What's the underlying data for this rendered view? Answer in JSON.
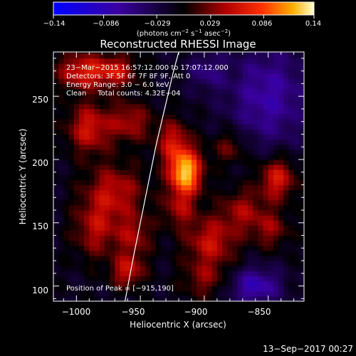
{
  "chart_data": {
    "type": "heatmap",
    "title": "Reconstructed RHESSI Image",
    "xlabel": "Heliocentric X (arcsec)",
    "ylabel": "Heliocentric Y (arcsec)",
    "xlim": [
      -1018,
      -822
    ],
    "ylim": [
      88,
      285
    ],
    "x_ticks": [
      -1000,
      -950,
      -900,
      -850
    ],
    "x_tick_labels": [
      "−1000",
      "−950",
      "−900",
      "−850"
    ],
    "y_ticks": [
      100,
      150,
      200,
      250
    ],
    "y_tick_labels": [
      "100",
      "150",
      "200",
      "250"
    ],
    "colorbar": {
      "range": [
        -0.14,
        0.14
      ],
      "ticks": [
        -0.14,
        -0.086,
        -0.029,
        0.029,
        0.086,
        0.14
      ],
      "tick_labels": [
        "−0.14",
        "−0.086",
        "−0.029",
        "0.029",
        "0.086",
        "0.14"
      ],
      "units_label": "(photons cm",
      "units_exp1": "−2",
      "units_mid": " s",
      "units_exp2": "−1",
      "units_end": " asec",
      "units_exp3": "−2",
      "units_close": ")"
    },
    "info_lines": [
      "23−Mar−2015 16:57:12.000 to 17:07:12.000",
      "Detectors: 3F 5F 6F 7F 8F 9F, Att 0",
      "Energy Range: 3.0 − 6.0 keV",
      "Clean     Total counts: 4.32E+04"
    ],
    "peak_label": "Position of Peak = [−915,190]",
    "peak": {
      "x": -915,
      "y": 190
    },
    "limb_points": [
      [
        -962,
        88
      ],
      [
        -956,
        120
      ],
      [
        -950,
        150
      ],
      [
        -944,
        180
      ],
      [
        -938,
        210
      ],
      [
        -931,
        240
      ],
      [
        -924,
        270
      ],
      [
        -920,
        285
      ]
    ],
    "sources": [
      {
        "x": -915,
        "y": 190,
        "amp": 0.14,
        "sx": 9,
        "sy": 13
      },
      {
        "x": -925,
        "y": 215,
        "amp": 0.06,
        "sx": 9,
        "sy": 12
      },
      {
        "x": -995,
        "y": 270,
        "amp": 0.075,
        "sx": 14,
        "sy": 10
      },
      {
        "x": -968,
        "y": 270,
        "amp": 0.06,
        "sx": 11,
        "sy": 9
      },
      {
        "x": -990,
        "y": 225,
        "amp": 0.07,
        "sx": 12,
        "sy": 14
      },
      {
        "x": -958,
        "y": 230,
        "amp": 0.055,
        "sx": 11,
        "sy": 11
      },
      {
        "x": -970,
        "y": 175,
        "amp": 0.06,
        "sx": 16,
        "sy": 15
      },
      {
        "x": -985,
        "y": 145,
        "amp": 0.055,
        "sx": 12,
        "sy": 16
      },
      {
        "x": -955,
        "y": 140,
        "amp": 0.05,
        "sx": 10,
        "sy": 12
      },
      {
        "x": -960,
        "y": 112,
        "amp": 0.065,
        "sx": 9,
        "sy": 9
      },
      {
        "x": -895,
        "y": 135,
        "amp": 0.065,
        "sx": 14,
        "sy": 14
      },
      {
        "x": -870,
        "y": 160,
        "amp": 0.05,
        "sx": 12,
        "sy": 12
      },
      {
        "x": -843,
        "y": 185,
        "amp": 0.075,
        "sx": 10,
        "sy": 12
      },
      {
        "x": -848,
        "y": 145,
        "amp": 0.045,
        "sx": 10,
        "sy": 10
      },
      {
        "x": -880,
        "y": 210,
        "amp": 0.04,
        "sx": 10,
        "sy": 10
      },
      {
        "x": -900,
        "y": 105,
        "amp": 0.04,
        "sx": 12,
        "sy": 10
      },
      {
        "x": -920,
        "y": 160,
        "amp": 0.045,
        "sx": 9,
        "sy": 10
      }
    ],
    "negative_regions": [
      {
        "x": -850,
        "y": 250,
        "amp": -0.06,
        "sx": 22,
        "sy": 28
      },
      {
        "x": -860,
        "y": 100,
        "amp": -0.07,
        "sx": 14,
        "sy": 10
      },
      {
        "x": -898,
        "y": 270,
        "amp": -0.04,
        "sx": 10,
        "sy": 10
      }
    ]
  },
  "footer": {
    "date": "13−Sep−2017 00:27"
  }
}
